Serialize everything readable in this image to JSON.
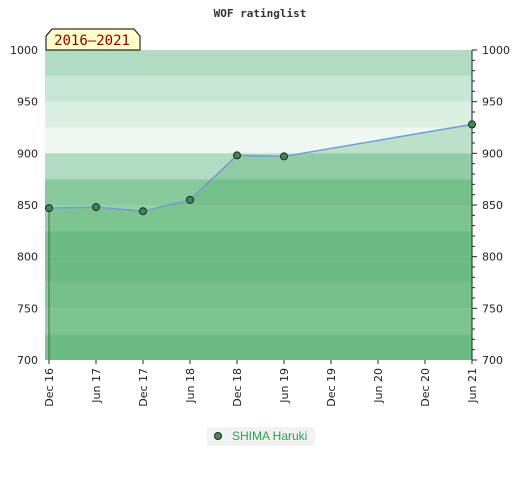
{
  "chart_data": {
    "type": "area",
    "title": "WOF ratinglist",
    "period_label": "2016–2021",
    "x": [
      "Dec 16",
      "Jun 17",
      "Dec 17",
      "Jun 18",
      "Dec 18",
      "Jun 19",
      "Jun 21"
    ],
    "x_ticks": [
      "Dec 16",
      "Jun 17",
      "Dec 17",
      "Jun 18",
      "Dec 18",
      "Jun 19",
      "Dec 19",
      "Jun 20",
      "Dec 20",
      "Jun 21"
    ],
    "ylim": [
      700,
      1000
    ],
    "y_ticks": [
      700,
      750,
      800,
      850,
      900,
      950,
      1000
    ],
    "series": [
      {
        "name": "SHIMA Haruki",
        "values": [
          847,
          848,
          844,
          855,
          898,
          897,
          928
        ]
      }
    ],
    "grid": false,
    "legend_position": "bottom-center",
    "colors": {
      "band_light": [
        "#b2dcc2",
        "#c7e6d3",
        "#dcefe3",
        "#eef8f1"
      ],
      "band_dark": [
        "#7dc493",
        "#89ca9c",
        "#95d0a6",
        "#7dc493"
      ],
      "line": "#6a9fd8",
      "marker": "#3e8a56",
      "legend_text": "#2e9e4e",
      "period_bg": "#ffffcc",
      "period_text": "#8b0000"
    }
  }
}
